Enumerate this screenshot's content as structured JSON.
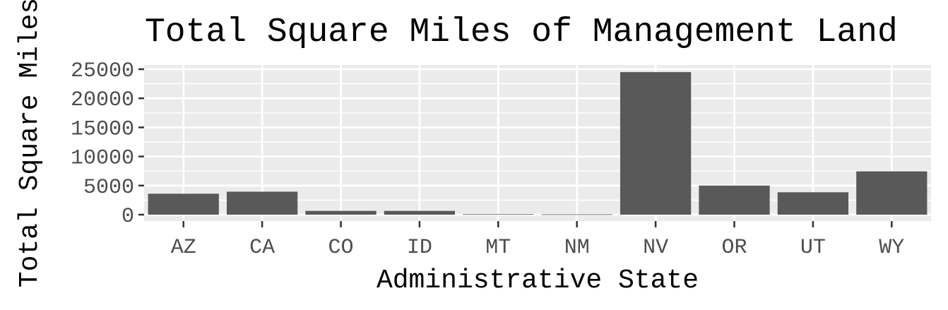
{
  "chart_data": {
    "type": "bar",
    "title": "Total Square Miles of Management Land",
    "xlabel": "Administrative State",
    "ylabel": "Total Square Miles",
    "categories": [
      "AZ",
      "CA",
      "CO",
      "ID",
      "MT",
      "NM",
      "NV",
      "OR",
      "UT",
      "WY"
    ],
    "values": [
      3600,
      3950,
      650,
      650,
      90,
      60,
      24500,
      5000,
      3850,
      7450
    ],
    "ylim": [
      0,
      26000
    ],
    "yticks": [
      0,
      5000,
      10000,
      15000,
      20000,
      25000
    ],
    "ytick_labels": [
      "0",
      "5000",
      "10000",
      "15000",
      "20000",
      "25000"
    ],
    "grid": true,
    "legend": "none",
    "colors": {
      "bar": "#595959",
      "panel_background": "#ebebeb",
      "grid_line": "#ffffff",
      "tick_mark": "#333333",
      "tick_text": "#4d4d4d",
      "title_text": "#000000"
    }
  }
}
